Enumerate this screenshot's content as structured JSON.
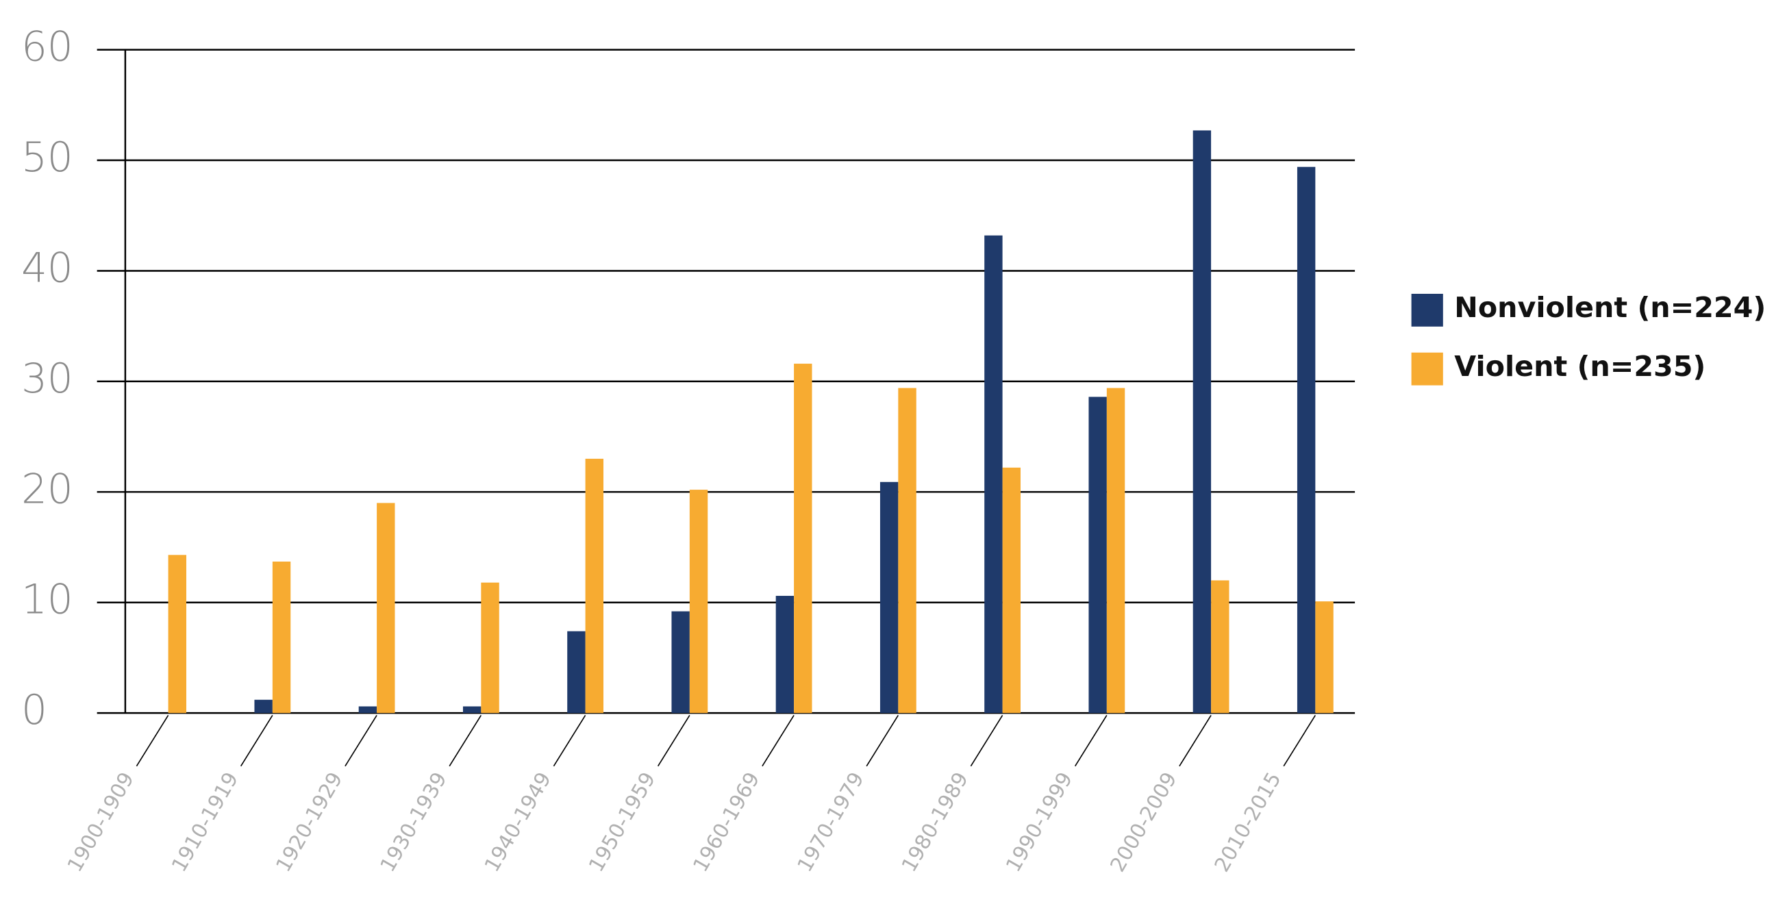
{
  "chart_data": {
    "type": "bar",
    "categories": [
      "1900-1909",
      "1910-1919",
      "1920-1929",
      "1930-1939",
      "1940-1949",
      "1950-1959",
      "1960-1969",
      "1970-1979",
      "1980-1989",
      "1990-1999",
      "2000-2009",
      "2010-2015"
    ],
    "series": [
      {
        "name": "Nonviolent (n=224)",
        "color": "#1f3a6b",
        "values": [
          0,
          1.2,
          0.6,
          0.6,
          7.4,
          9.2,
          10.6,
          20.9,
          43.2,
          28.6,
          52.7,
          49.4
        ]
      },
      {
        "name": "Violent (n=235)",
        "color": "#f7ab31",
        "values": [
          14.3,
          13.7,
          19,
          11.8,
          23,
          20.2,
          31.6,
          29.4,
          22.2,
          29.4,
          12,
          10.1
        ]
      }
    ],
    "ylim": [
      0,
      60
    ],
    "yticks": [
      0,
      10,
      20,
      30,
      40,
      50,
      60
    ],
    "grid": true,
    "legend": "right"
  }
}
